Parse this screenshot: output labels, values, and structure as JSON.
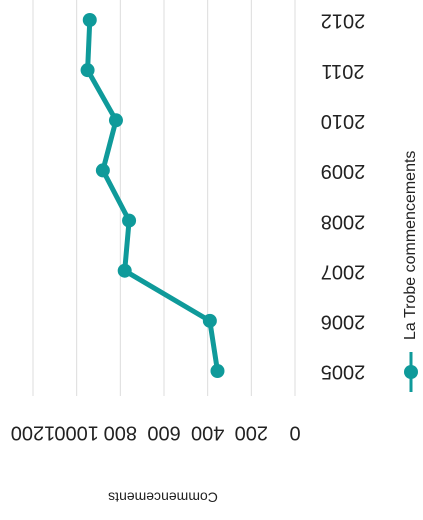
{
  "chart_data": {
    "type": "line",
    "orientation": "rotated-180",
    "categories": [
      "2005",
      "2006",
      "2007",
      "2008",
      "2009",
      "2010",
      "2011",
      "2012"
    ],
    "series": [
      {
        "name": "La Trobe commencements",
        "values": [
          355,
          390,
          780,
          760,
          880,
          820,
          950,
          940
        ],
        "color": "#0f9a9a"
      }
    ],
    "ylabel": "Commencements",
    "ylim": [
      0,
      1200
    ],
    "yticks": [
      0,
      200,
      400,
      600,
      800,
      1000,
      1200
    ],
    "grid": true,
    "legend_position": "right"
  }
}
